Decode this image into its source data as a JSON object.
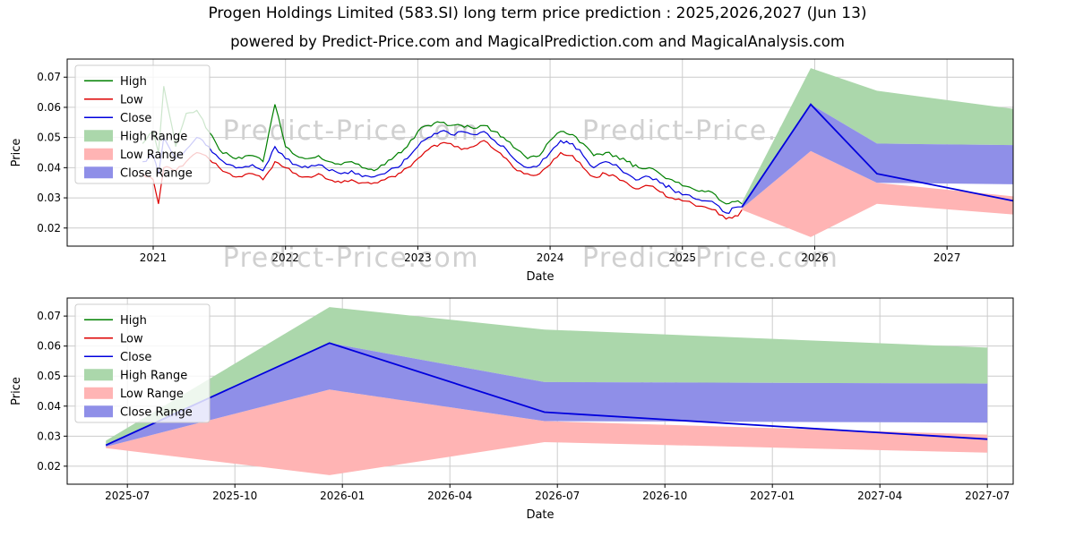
{
  "page": {
    "title": "Progen Holdings Limited (583.SI) long term price prediction : 2025,2026,2027 (Jun 13)",
    "subtitle": "powered by Predict-Price.com and MagicalPrediction.com and MagicalAnalysis.com",
    "watermark": "Predict-Price.com"
  },
  "colors": {
    "high": "#008000",
    "low": "#dd0000",
    "close": "#0000dd",
    "high_range": "#abd7ab",
    "low_range": "#ffb4b4",
    "close_range": "#8f8fe8",
    "grid": "#cccccc",
    "watermark": "#d0d0d0",
    "text": "#000000"
  },
  "chart_data": [
    {
      "name": "price-history-with-prediction",
      "type": "line",
      "title": "",
      "xlabel": "Date",
      "ylabel": "Price",
      "grid": true,
      "legend_position": "upper left",
      "xlim": [
        2020.35,
        2027.5
      ],
      "ylim": [
        0.014,
        0.076
      ],
      "xticks": [
        {
          "value": 2021,
          "label": "2021"
        },
        {
          "value": 2022,
          "label": "2022"
        },
        {
          "value": 2023,
          "label": "2023"
        },
        {
          "value": 2024,
          "label": "2024"
        },
        {
          "value": 2025,
          "label": "2025"
        },
        {
          "value": 2026,
          "label": "2026"
        },
        {
          "value": 2027,
          "label": "2027"
        }
      ],
      "yticks": [
        {
          "value": 0.02,
          "label": "0.02"
        },
        {
          "value": 0.03,
          "label": "0.03"
        },
        {
          "value": 0.04,
          "label": "0.04"
        },
        {
          "value": 0.05,
          "label": "0.05"
        },
        {
          "value": 0.06,
          "label": "0.06"
        },
        {
          "value": 0.07,
          "label": "0.07"
        }
      ],
      "legend": [
        {
          "label": "High",
          "type": "line",
          "color": "#008000"
        },
        {
          "label": "Low",
          "type": "line",
          "color": "#dd0000"
        },
        {
          "label": "Close",
          "type": "line",
          "color": "#0000dd"
        },
        {
          "label": "High Range",
          "type": "patch",
          "color": "#abd7ab"
        },
        {
          "label": "Low Range",
          "type": "patch",
          "color": "#ffb4b4"
        },
        {
          "label": "Close Range",
          "type": "patch",
          "color": "#8f8fe8"
        }
      ],
      "history": {
        "x": [
          2020.92,
          2021.0,
          2021.04,
          2021.08,
          2021.17,
          2021.25,
          2021.33,
          2021.42,
          2021.5,
          2021.58,
          2021.67,
          2021.75,
          2021.83,
          2021.92,
          2022.0,
          2022.08,
          2022.17,
          2022.25,
          2022.33,
          2022.42,
          2022.5,
          2022.58,
          2022.67,
          2022.75,
          2022.83,
          2022.92,
          2023.0,
          2023.08,
          2023.17,
          2023.25,
          2023.33,
          2023.42,
          2023.5,
          2023.58,
          2023.67,
          2023.75,
          2023.83,
          2023.92,
          2024.0,
          2024.08,
          2024.17,
          2024.25,
          2024.33,
          2024.42,
          2024.5,
          2024.58,
          2024.67,
          2024.75,
          2024.83,
          2024.92,
          2025.0,
          2025.08,
          2025.17,
          2025.25,
          2025.33,
          2025.42,
          2025.45
        ],
        "high": [
          0.048,
          0.052,
          0.045,
          0.067,
          0.047,
          0.058,
          0.059,
          0.052,
          0.046,
          0.044,
          0.043,
          0.044,
          0.042,
          0.061,
          0.047,
          0.044,
          0.043,
          0.044,
          0.042,
          0.041,
          0.042,
          0.04,
          0.039,
          0.041,
          0.044,
          0.047,
          0.052,
          0.054,
          0.055,
          0.054,
          0.054,
          0.053,
          0.054,
          0.052,
          0.049,
          0.046,
          0.043,
          0.044,
          0.049,
          0.052,
          0.051,
          0.048,
          0.044,
          0.045,
          0.044,
          0.042,
          0.04,
          0.04,
          0.038,
          0.036,
          0.034,
          0.033,
          0.032,
          0.031,
          0.028,
          0.029,
          0.028
        ],
        "low": [
          0.038,
          0.036,
          0.028,
          0.04,
          0.039,
          0.042,
          0.045,
          0.043,
          0.04,
          0.038,
          0.037,
          0.038,
          0.036,
          0.042,
          0.04,
          0.038,
          0.037,
          0.038,
          0.036,
          0.035,
          0.036,
          0.035,
          0.035,
          0.036,
          0.037,
          0.04,
          0.043,
          0.046,
          0.048,
          0.048,
          0.046,
          0.047,
          0.049,
          0.046,
          0.043,
          0.039,
          0.038,
          0.038,
          0.041,
          0.045,
          0.044,
          0.04,
          0.037,
          0.038,
          0.037,
          0.035,
          0.033,
          0.034,
          0.032,
          0.03,
          0.029,
          0.028,
          0.027,
          0.026,
          0.023,
          0.024,
          0.026
        ],
        "close": [
          0.042,
          0.044,
          0.038,
          0.05,
          0.043,
          0.046,
          0.05,
          0.047,
          0.043,
          0.041,
          0.04,
          0.041,
          0.039,
          0.047,
          0.043,
          0.041,
          0.04,
          0.041,
          0.039,
          0.038,
          0.039,
          0.037,
          0.037,
          0.038,
          0.04,
          0.043,
          0.047,
          0.05,
          0.052,
          0.051,
          0.052,
          0.051,
          0.052,
          0.049,
          0.046,
          0.042,
          0.04,
          0.041,
          0.045,
          0.049,
          0.048,
          0.044,
          0.04,
          0.042,
          0.041,
          0.038,
          0.036,
          0.037,
          0.035,
          0.033,
          0.031,
          0.03,
          0.029,
          0.028,
          0.025,
          0.027,
          0.027
        ]
      },
      "prediction": {
        "x": [
          2025.45,
          2025.97,
          2026.47,
          2027.5
        ],
        "close": [
          0.027,
          0.061,
          0.038,
          0.029
        ],
        "high_upper": [
          0.0285,
          0.073,
          0.0655,
          0.0595
        ],
        "high_lower": [
          0.027,
          0.061,
          0.048,
          0.0475
        ],
        "close_upper": [
          0.027,
          0.061,
          0.048,
          0.0475
        ],
        "close_lower": [
          0.0265,
          0.0455,
          0.035,
          0.0345
        ],
        "low_upper": [
          0.0265,
          0.0455,
          0.035,
          0.0305
        ],
        "low_lower": [
          0.026,
          0.017,
          0.028,
          0.0245
        ]
      }
    },
    {
      "name": "prediction-detail",
      "type": "line",
      "title": "",
      "xlabel": "Date",
      "ylabel": "Price",
      "grid": true,
      "legend_position": "upper left",
      "xlim": [
        2025.36,
        2027.56
      ],
      "ylim": [
        0.014,
        0.076
      ],
      "xticks": [
        {
          "value": 2025.5,
          "label": "2025-07"
        },
        {
          "value": 2025.75,
          "label": "2025-10"
        },
        {
          "value": 2026.0,
          "label": "2026-01"
        },
        {
          "value": 2026.25,
          "label": "2026-04"
        },
        {
          "value": 2026.5,
          "label": "2026-07"
        },
        {
          "value": 2026.75,
          "label": "2026-10"
        },
        {
          "value": 2027.0,
          "label": "2027-01"
        },
        {
          "value": 2027.25,
          "label": "2027-04"
        },
        {
          "value": 2027.5,
          "label": "2027-07"
        }
      ],
      "yticks": [
        {
          "value": 0.02,
          "label": "0.02"
        },
        {
          "value": 0.03,
          "label": "0.03"
        },
        {
          "value": 0.04,
          "label": "0.04"
        },
        {
          "value": 0.05,
          "label": "0.05"
        },
        {
          "value": 0.06,
          "label": "0.06"
        },
        {
          "value": 0.07,
          "label": "0.07"
        }
      ],
      "legend": [
        {
          "label": "High",
          "type": "line",
          "color": "#008000"
        },
        {
          "label": "Low",
          "type": "line",
          "color": "#dd0000"
        },
        {
          "label": "Close",
          "type": "line",
          "color": "#0000dd"
        },
        {
          "label": "High Range",
          "type": "patch",
          "color": "#abd7ab"
        },
        {
          "label": "Low Range",
          "type": "patch",
          "color": "#ffb4b4"
        },
        {
          "label": "Close Range",
          "type": "patch",
          "color": "#8f8fe8"
        }
      ],
      "prediction": {
        "x": [
          2025.45,
          2025.97,
          2026.47,
          2027.5
        ],
        "close": [
          0.027,
          0.061,
          0.038,
          0.029
        ],
        "high_upper": [
          0.0285,
          0.073,
          0.0655,
          0.0595
        ],
        "high_lower": [
          0.027,
          0.061,
          0.048,
          0.0475
        ],
        "close_upper": [
          0.027,
          0.061,
          0.048,
          0.0475
        ],
        "close_lower": [
          0.0265,
          0.0455,
          0.035,
          0.0345
        ],
        "low_upper": [
          0.0265,
          0.0455,
          0.035,
          0.0305
        ],
        "low_lower": [
          0.026,
          0.017,
          0.028,
          0.0245
        ]
      }
    }
  ]
}
